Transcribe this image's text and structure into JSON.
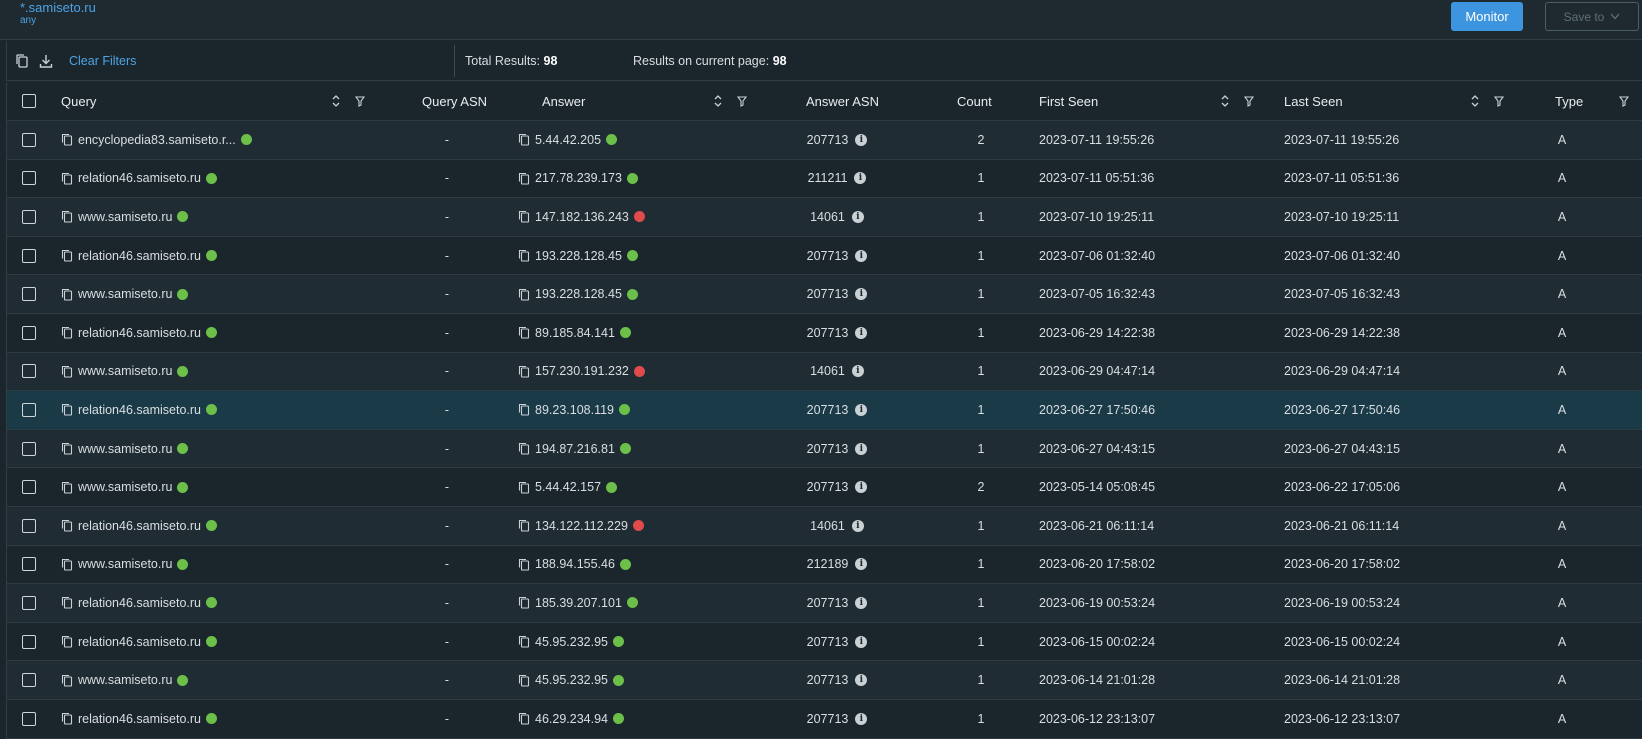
{
  "header": {
    "query": "*.samiseto.ru",
    "type": "any",
    "monitor_label": "Monitor",
    "save_label": "Save to"
  },
  "toolbar": {
    "clear_filters": "Clear Filters",
    "total_label": "Total Results:",
    "total_value": "98",
    "current_label": "Results on current page:",
    "current_value": "98"
  },
  "columns": {
    "query": "Query",
    "query_asn": "Query ASN",
    "answer": "Answer",
    "answer_asn": "Answer ASN",
    "count": "Count",
    "first_seen": "First Seen",
    "last_seen": "Last Seen",
    "type": "Type"
  },
  "colors": {
    "green": "#6cc04a",
    "red": "#e14b4b",
    "accent": "#3d95e0"
  },
  "rows": [
    {
      "query": "encyclopedia83.samiseto.r...",
      "qasn": "-",
      "answer": "5.44.42.205",
      "status": "green",
      "aasn": "207713",
      "count": "2",
      "first": "2023-07-11 19:55:26",
      "last": "2023-07-11 19:55:26",
      "type": "A"
    },
    {
      "query": "relation46.samiseto.ru",
      "qasn": "-",
      "answer": "217.78.239.173",
      "status": "green",
      "aasn": "211211",
      "count": "1",
      "first": "2023-07-11 05:51:36",
      "last": "2023-07-11 05:51:36",
      "type": "A"
    },
    {
      "query": "www.samiseto.ru",
      "qasn": "-",
      "answer": "147.182.136.243",
      "status": "red",
      "aasn": "14061",
      "count": "1",
      "first": "2023-07-10 19:25:11",
      "last": "2023-07-10 19:25:11",
      "type": "A"
    },
    {
      "query": "relation46.samiseto.ru",
      "qasn": "-",
      "answer": "193.228.128.45",
      "status": "green",
      "aasn": "207713",
      "count": "1",
      "first": "2023-07-06 01:32:40",
      "last": "2023-07-06 01:32:40",
      "type": "A"
    },
    {
      "query": "www.samiseto.ru",
      "qasn": "-",
      "answer": "193.228.128.45",
      "status": "green",
      "aasn": "207713",
      "count": "1",
      "first": "2023-07-05 16:32:43",
      "last": "2023-07-05 16:32:43",
      "type": "A"
    },
    {
      "query": "relation46.samiseto.ru",
      "qasn": "-",
      "answer": "89.185.84.141",
      "status": "green",
      "aasn": "207713",
      "count": "1",
      "first": "2023-06-29 14:22:38",
      "last": "2023-06-29 14:22:38",
      "type": "A"
    },
    {
      "query": "www.samiseto.ru",
      "qasn": "-",
      "answer": "157.230.191.232",
      "status": "red",
      "aasn": "14061",
      "count": "1",
      "first": "2023-06-29 04:47:14",
      "last": "2023-06-29 04:47:14",
      "type": "A"
    },
    {
      "query": "relation46.samiseto.ru",
      "qasn": "-",
      "answer": "89.23.108.119",
      "status": "green",
      "aasn": "207713",
      "count": "1",
      "first": "2023-06-27 17:50:46",
      "last": "2023-06-27 17:50:46",
      "type": "A",
      "selected": true
    },
    {
      "query": "www.samiseto.ru",
      "qasn": "-",
      "answer": "194.87.216.81",
      "status": "green",
      "aasn": "207713",
      "count": "1",
      "first": "2023-06-27 04:43:15",
      "last": "2023-06-27 04:43:15",
      "type": "A"
    },
    {
      "query": "www.samiseto.ru",
      "qasn": "-",
      "answer": "5.44.42.157",
      "status": "green",
      "aasn": "207713",
      "count": "2",
      "first": "2023-05-14 05:08:45",
      "last": "2023-06-22 17:05:06",
      "type": "A"
    },
    {
      "query": "relation46.samiseto.ru",
      "qasn": "-",
      "answer": "134.122.112.229",
      "status": "red",
      "aasn": "14061",
      "count": "1",
      "first": "2023-06-21 06:11:14",
      "last": "2023-06-21 06:11:14",
      "type": "A"
    },
    {
      "query": "www.samiseto.ru",
      "qasn": "-",
      "answer": "188.94.155.46",
      "status": "green",
      "aasn": "212189",
      "count": "1",
      "first": "2023-06-20 17:58:02",
      "last": "2023-06-20 17:58:02",
      "type": "A"
    },
    {
      "query": "relation46.samiseto.ru",
      "qasn": "-",
      "answer": "185.39.207.101",
      "status": "green",
      "aasn": "207713",
      "count": "1",
      "first": "2023-06-19 00:53:24",
      "last": "2023-06-19 00:53:24",
      "type": "A"
    },
    {
      "query": "relation46.samiseto.ru",
      "qasn": "-",
      "answer": "45.95.232.95",
      "status": "green",
      "aasn": "207713",
      "count": "1",
      "first": "2023-06-15 00:02:24",
      "last": "2023-06-15 00:02:24",
      "type": "A"
    },
    {
      "query": "www.samiseto.ru",
      "qasn": "-",
      "answer": "45.95.232.95",
      "status": "green",
      "aasn": "207713",
      "count": "1",
      "first": "2023-06-14 21:01:28",
      "last": "2023-06-14 21:01:28",
      "type": "A"
    },
    {
      "query": "relation46.samiseto.ru",
      "qasn": "-",
      "answer": "46.29.234.94",
      "status": "green",
      "aasn": "207713",
      "count": "1",
      "first": "2023-06-12 23:13:07",
      "last": "2023-06-12 23:13:07",
      "type": "A"
    }
  ]
}
